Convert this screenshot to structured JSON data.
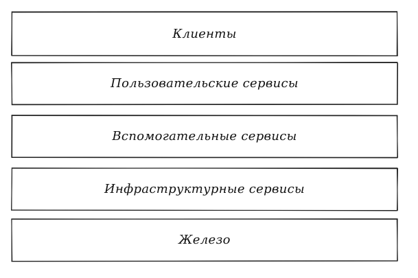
{
  "diagram": {
    "layers": [
      {
        "label": "Клиенты"
      },
      {
        "label": "Пользовательские сервисы"
      },
      {
        "label": "Вспомогательные сервисы"
      },
      {
        "label": "Инфраструктурные сервисы"
      },
      {
        "label": "Железо"
      }
    ],
    "colors": {
      "stroke": "#222222",
      "text": "#111111",
      "background": "#ffffff"
    }
  }
}
